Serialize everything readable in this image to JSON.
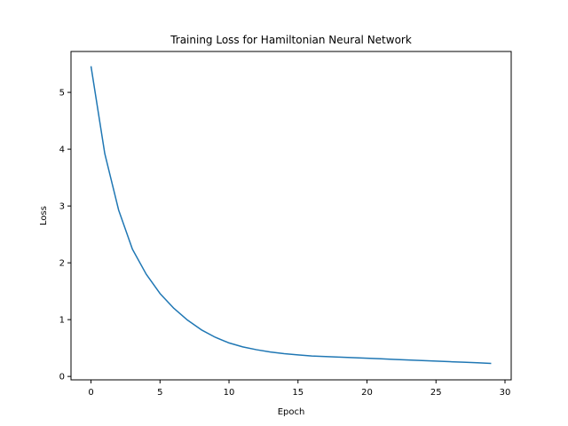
{
  "chart_data": {
    "type": "line",
    "title": "Training Loss for Hamiltonian Neural Network",
    "xlabel": "Epoch",
    "ylabel": "Loss",
    "xlim": [
      -1.45,
      30.45
    ],
    "ylim": [
      -0.06,
      5.72
    ],
    "xticks": [
      0,
      5,
      10,
      15,
      20,
      25,
      30
    ],
    "yticks": [
      0,
      1,
      2,
      3,
      4,
      5
    ],
    "grid": false,
    "series": [
      {
        "color": "#1f77b4",
        "x": [
          0,
          1,
          2,
          3,
          4,
          5,
          6,
          7,
          8,
          9,
          10,
          11,
          12,
          13,
          14,
          15,
          16,
          17,
          18,
          19,
          20,
          21,
          22,
          23,
          24,
          25,
          26,
          27,
          28,
          29
        ],
        "values": [
          5.46,
          3.92,
          2.93,
          2.24,
          1.8,
          1.46,
          1.2,
          0.99,
          0.82,
          0.69,
          0.59,
          0.52,
          0.47,
          0.43,
          0.4,
          0.38,
          0.36,
          0.35,
          0.34,
          0.33,
          0.32,
          0.31,
          0.3,
          0.29,
          0.28,
          0.27,
          0.26,
          0.25,
          0.24,
          0.23
        ]
      }
    ]
  }
}
